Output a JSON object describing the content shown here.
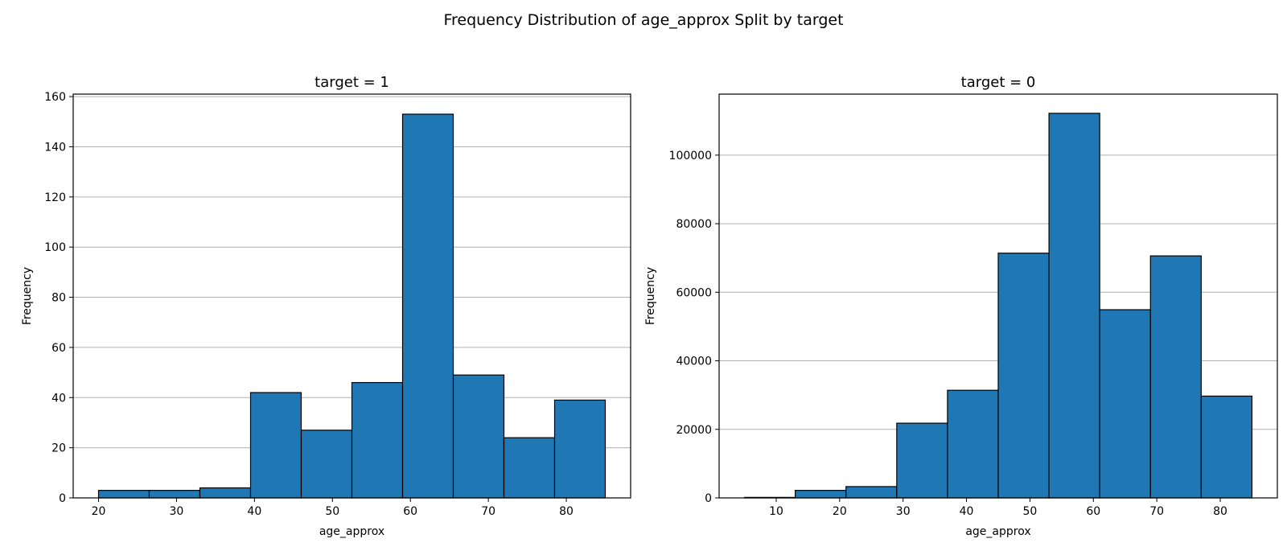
{
  "title": "Frequency Distribution of age_approx Split by target",
  "chart_data": [
    {
      "type": "bar",
      "title": "target = 1",
      "xlabel": "age_approx",
      "ylabel": "Frequency",
      "bin_edges": [
        20,
        26.5,
        33,
        39.5,
        46,
        52.5,
        59,
        65.5,
        72,
        78.5,
        85
      ],
      "values": [
        3,
        3,
        4,
        42,
        27,
        46,
        153,
        49,
        24,
        39
      ],
      "xlim": [
        16.75,
        88.25
      ],
      "ylim": [
        0,
        161
      ],
      "xticks": [
        20,
        30,
        40,
        50,
        60,
        70,
        80
      ],
      "yticks": [
        0,
        20,
        40,
        60,
        80,
        100,
        120,
        140,
        160
      ],
      "grid": "y",
      "color": "#1f77b4"
    },
    {
      "type": "bar",
      "title": "target = 0",
      "xlabel": "age_approx",
      "ylabel": "Frequency",
      "bin_edges": [
        5,
        13,
        21,
        29,
        37,
        45,
        53,
        61,
        69,
        77,
        85
      ],
      "values": [
        150,
        2200,
        3300,
        21800,
        31400,
        71400,
        112200,
        54900,
        70600,
        29700
      ],
      "xlim": [
        1,
        89
      ],
      "ylim": [
        0,
        117800
      ],
      "xticks": [
        10,
        20,
        30,
        40,
        50,
        60,
        70,
        80
      ],
      "yticks": [
        0,
        20000,
        40000,
        60000,
        80000,
        100000
      ],
      "grid": "y",
      "color": "#1f77b4"
    }
  ]
}
